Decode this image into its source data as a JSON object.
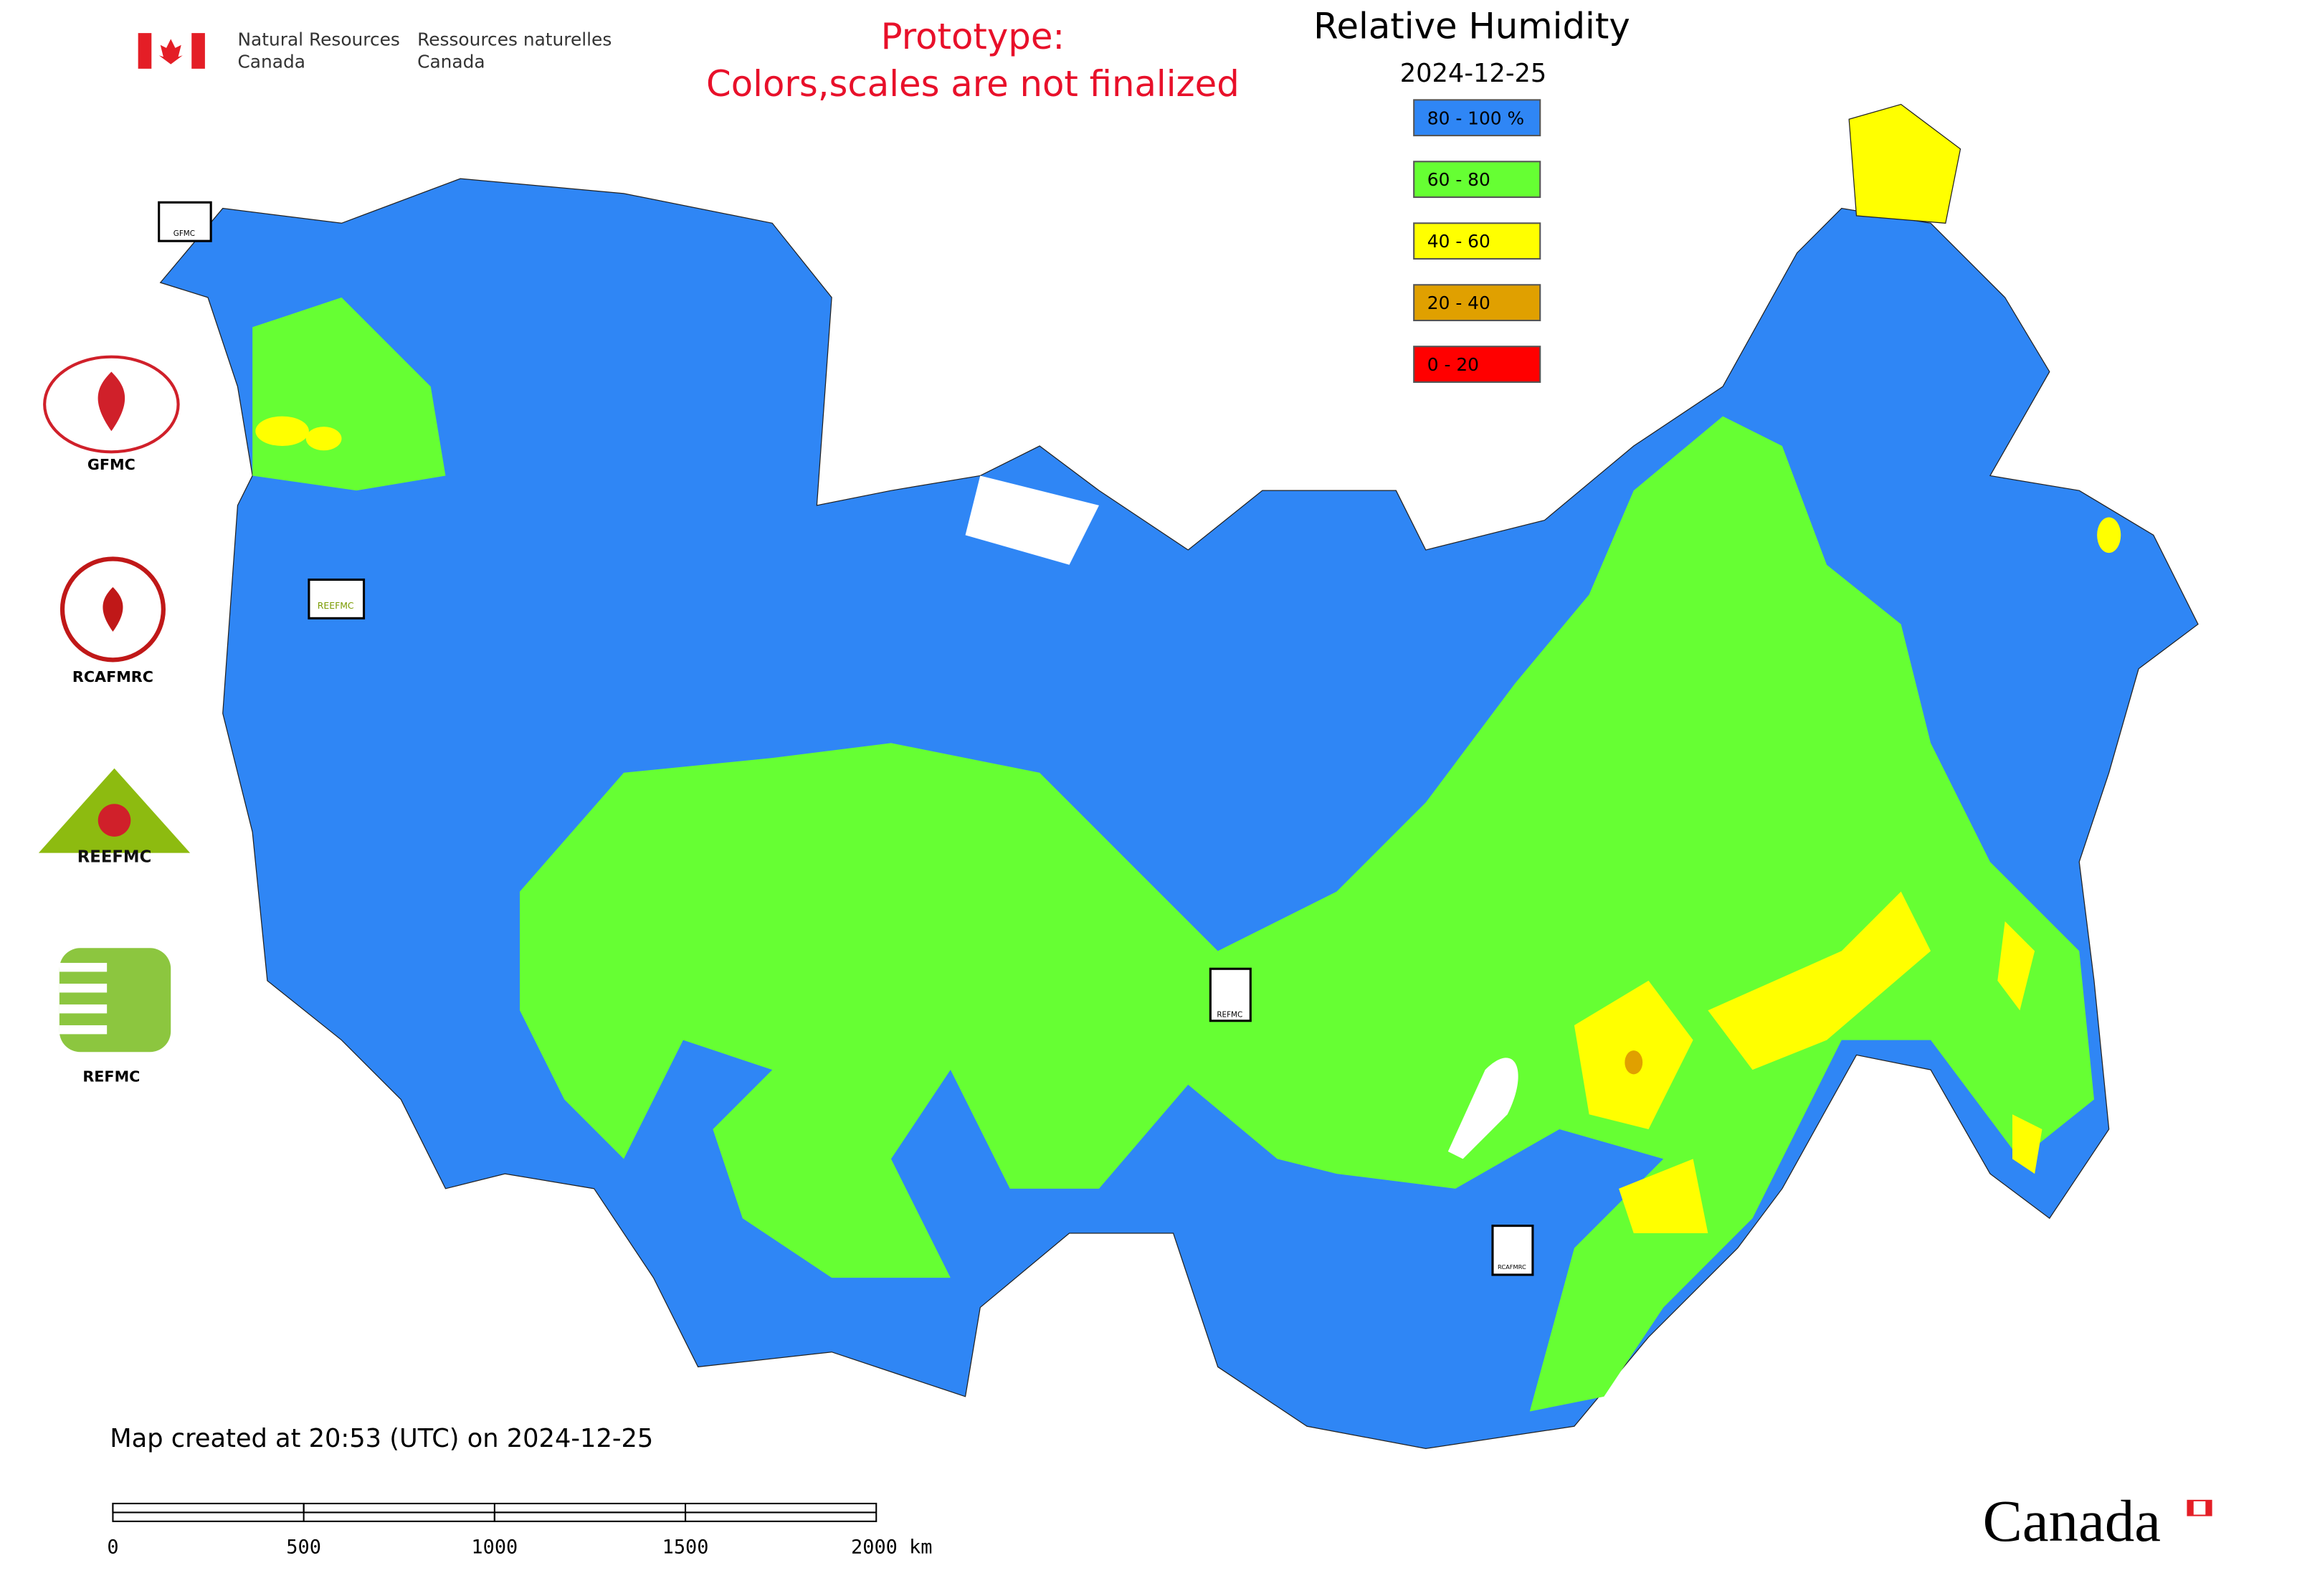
{
  "header": {
    "agency_en": [
      "Natural Resources",
      "Canada"
    ],
    "agency_fr": [
      "Ressources naturelles",
      "Canada"
    ],
    "notice": [
      "Prototype:",
      "Colors,scales are not finalized"
    ]
  },
  "title": "Relative Humidity",
  "date": "2024-12-25",
  "legend": [
    {
      "label": "80 - 100 %",
      "color": "#2f86f5"
    },
    {
      "label": "60 - 80",
      "color": "#66ff33"
    },
    {
      "label": "40 - 60",
      "color": "#ffff00"
    },
    {
      "label": "20 - 40",
      "color": "#e0a000"
    },
    {
      "label": "0 - 20",
      "color": "#ff0000"
    }
  ],
  "logos": [
    "GFMC",
    "RCAFMRC",
    "REEFMC",
    "REFMC"
  ],
  "map_markers": [
    "GFMC",
    "REEFMC",
    "REFMC",
    "RCAFMRC"
  ],
  "footer": {
    "created": "Map created at 20:53 (UTC) on 2024-12-25",
    "scale_labels": [
      "0",
      "500",
      "1000",
      "1500",
      "2000 km"
    ],
    "wordmark": "Canada"
  }
}
